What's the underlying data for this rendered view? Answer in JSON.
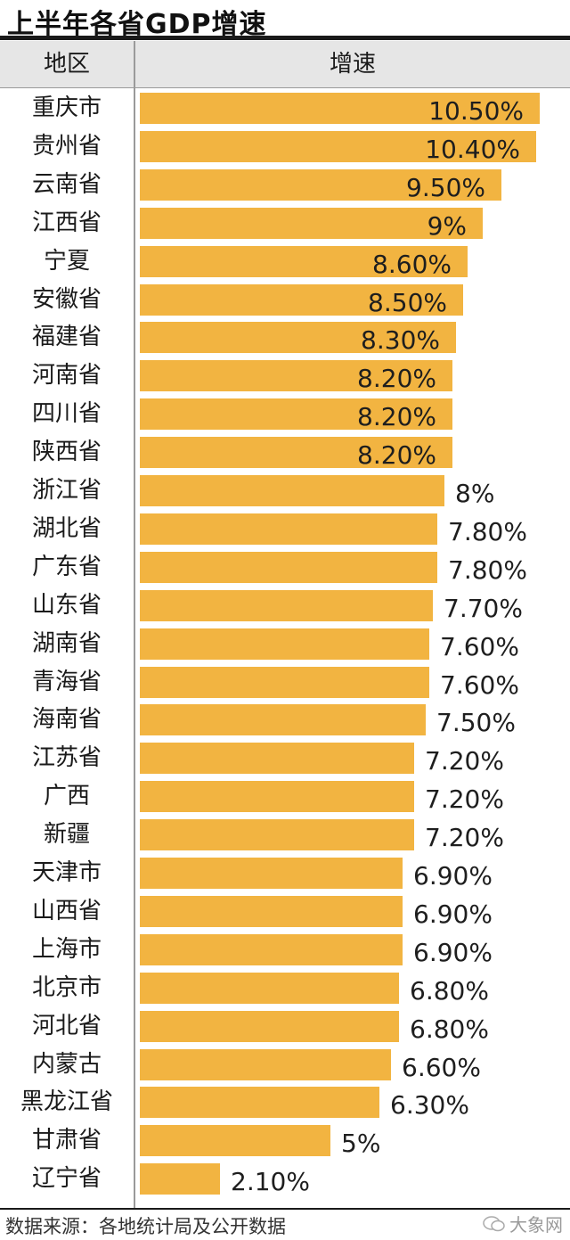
{
  "title": "上半年各省GDP增速",
  "header": {
    "region": "地区",
    "rate": "增速"
  },
  "source": "数据来源：各地统计局及公开数据",
  "watermark": "大象网",
  "colors": {
    "bar": "#f2b441",
    "header_bg": "#e6e6e6",
    "rule": "#1a1a1a"
  },
  "chart_data": {
    "type": "bar",
    "orientation": "horizontal",
    "title": "上半年各省GDP增速",
    "xlabel": "增速",
    "ylabel": "地区",
    "categories": [
      "重庆市",
      "贵州省",
      "云南省",
      "江西省",
      "宁夏",
      "安徽省",
      "福建省",
      "河南省",
      "四川省",
      "陕西省",
      "浙江省",
      "湖北省",
      "广东省",
      "山东省",
      "湖南省",
      "青海省",
      "海南省",
      "江苏省",
      "广西",
      "新疆",
      "天津市",
      "山西省",
      "上海市",
      "北京市",
      "河北省",
      "内蒙古",
      "黑龙江省",
      "甘肃省",
      "辽宁省"
    ],
    "values": [
      10.5,
      10.4,
      9.5,
      9,
      8.6,
      8.5,
      8.3,
      8.2,
      8.2,
      8.2,
      8,
      7.8,
      7.8,
      7.7,
      7.6,
      7.6,
      7.5,
      7.2,
      7.2,
      7.2,
      6.9,
      6.9,
      6.9,
      6.8,
      6.8,
      6.6,
      6.3,
      5,
      2.1
    ],
    "labels": [
      "10.50%",
      "10.40%",
      "9.50%",
      "9%",
      "8.60%",
      "8.50%",
      "8.30%",
      "8.20%",
      "8.20%",
      "8.20%",
      "8%",
      "7.80%",
      "7.80%",
      "7.70%",
      "7.60%",
      "7.60%",
      "7.50%",
      "7.20%",
      "7.20%",
      "7.20%",
      "6.90%",
      "6.90%",
      "6.90%",
      "6.80%",
      "6.80%",
      "6.60%",
      "6.30%",
      "5%",
      "2.10%"
    ],
    "xlim": [
      0,
      10.5
    ],
    "grid": false,
    "legend": "none"
  }
}
